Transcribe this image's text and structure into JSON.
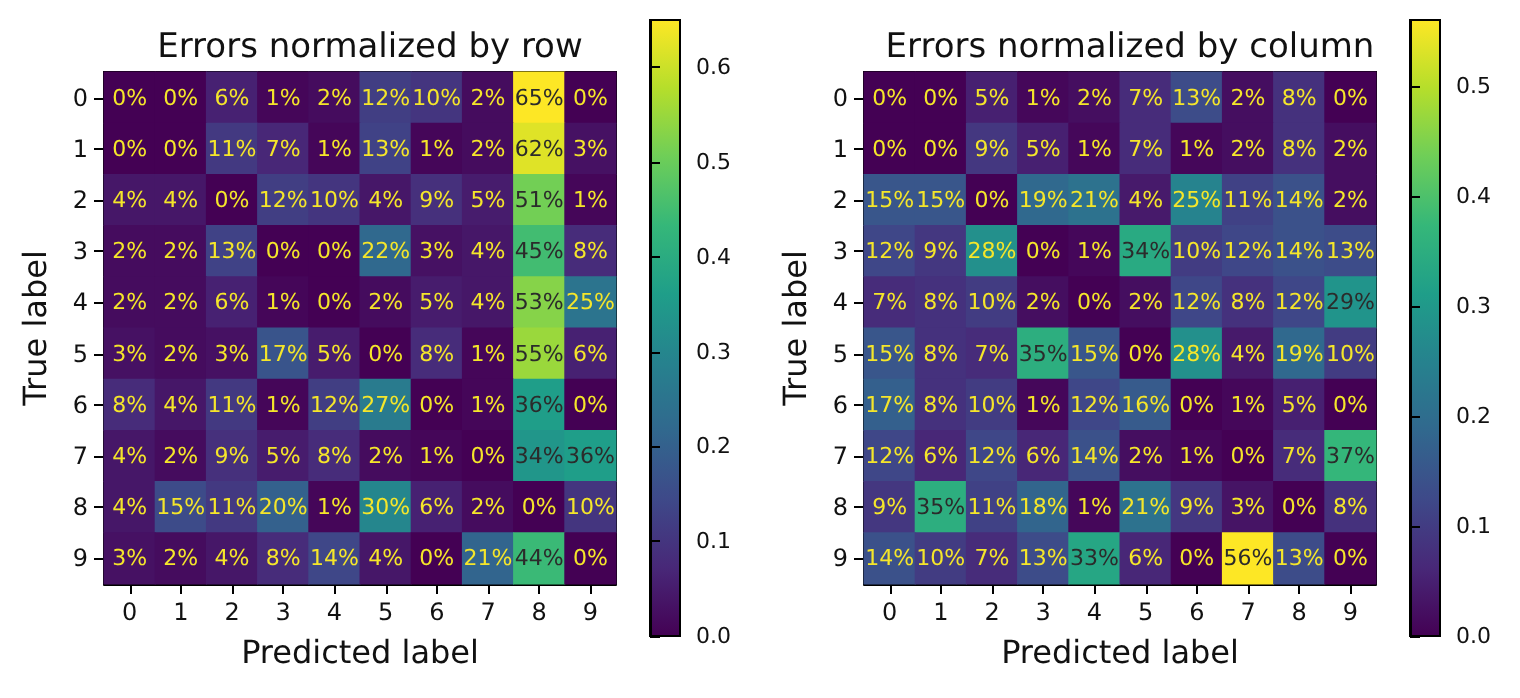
{
  "chart_data": [
    {
      "type": "heatmap",
      "title": "Errors normalized by row",
      "xlabel": "Predicted label",
      "ylabel": "True label",
      "categories": [
        "0",
        "1",
        "2",
        "3",
        "4",
        "5",
        "6",
        "7",
        "8",
        "9"
      ],
      "y_categories": [
        "0",
        "1",
        "2",
        "3",
        "4",
        "5",
        "6",
        "7",
        "8",
        "9"
      ],
      "cells": [
        [
          0,
          0,
          0.06,
          0.01,
          0.02,
          0.12,
          0.1,
          0.02,
          0.65,
          0
        ],
        [
          0,
          0,
          0.11,
          0.07,
          0.01,
          0.13,
          0.01,
          0.02,
          0.62,
          0.03
        ],
        [
          0.04,
          0.04,
          0,
          0.12,
          0.1,
          0.04,
          0.09,
          0.05,
          0.51,
          0.01
        ],
        [
          0.02,
          0.02,
          0.13,
          0,
          0,
          0.22,
          0.03,
          0.04,
          0.45,
          0.08
        ],
        [
          0.02,
          0.02,
          0.06,
          0.01,
          0,
          0.02,
          0.05,
          0.04,
          0.53,
          0.25
        ],
        [
          0.03,
          0.02,
          0.03,
          0.17,
          0.05,
          0,
          0.08,
          0.01,
          0.55,
          0.06
        ],
        [
          0.08,
          0.04,
          0.11,
          0.01,
          0.12,
          0.27,
          0,
          0.01,
          0.36,
          0
        ],
        [
          0.04,
          0.02,
          0.09,
          0.05,
          0.08,
          0.02,
          0.01,
          0,
          0.34,
          0.36
        ],
        [
          0.04,
          0.15,
          0.11,
          0.2,
          0.01,
          0.3,
          0.06,
          0.02,
          0,
          0.1
        ],
        [
          0.03,
          0.02,
          0.04,
          0.08,
          0.14,
          0.04,
          0,
          0.21,
          0.44,
          0
        ]
      ],
      "cell_labels": [
        [
          "0%",
          "0%",
          "6%",
          "1%",
          "2%",
          "12%",
          "10%",
          "2%",
          "65%",
          "0%"
        ],
        [
          "0%",
          "0%",
          "11%",
          "7%",
          "1%",
          "13%",
          "1%",
          "2%",
          "62%",
          "3%"
        ],
        [
          "4%",
          "4%",
          "0%",
          "12%",
          "10%",
          "4%",
          "9%",
          "5%",
          "51%",
          "1%"
        ],
        [
          "2%",
          "2%",
          "13%",
          "0%",
          "0%",
          "22%",
          "3%",
          "4%",
          "45%",
          "8%"
        ],
        [
          "2%",
          "2%",
          "6%",
          "1%",
          "0%",
          "2%",
          "5%",
          "4%",
          "53%",
          "25%"
        ],
        [
          "3%",
          "2%",
          "3%",
          "17%",
          "5%",
          "0%",
          "8%",
          "1%",
          "55%",
          "6%"
        ],
        [
          "8%",
          "4%",
          "11%",
          "1%",
          "12%",
          "27%",
          "0%",
          "1%",
          "36%",
          "0%"
        ],
        [
          "4%",
          "2%",
          "9%",
          "5%",
          "8%",
          "2%",
          "1%",
          "0%",
          "34%",
          "36%"
        ],
        [
          "4%",
          "15%",
          "11%",
          "20%",
          "1%",
          "30%",
          "6%",
          "2%",
          "0%",
          "10%"
        ],
        [
          "3%",
          "2%",
          "4%",
          "8%",
          "14%",
          "4%",
          "0%",
          "21%",
          "44%",
          "0%"
        ]
      ],
      "clim": [
        0,
        0.65
      ],
      "cticks": [
        {
          "value": 0,
          "label": "0.0"
        },
        0.1,
        0.2,
        0.3,
        0.4,
        0.5,
        0.6
      ]
    },
    {
      "type": "heatmap",
      "title": "Errors normalized by column",
      "xlabel": "Predicted label",
      "ylabel": "True label",
      "categories": [
        "0",
        "1",
        "2",
        "3",
        "4",
        "5",
        "6",
        "7",
        "8",
        "9"
      ],
      "y_categories": [
        "0",
        "1",
        "2",
        "3",
        "4",
        "5",
        "6",
        "7",
        "8",
        "9"
      ],
      "cells": [
        [
          0,
          0,
          0.05,
          0.01,
          0.02,
          0.07,
          0.13,
          0.02,
          0.08,
          0
        ],
        [
          0,
          0,
          0.09,
          0.05,
          0.01,
          0.07,
          0.01,
          0.02,
          0.08,
          0.02
        ],
        [
          0.15,
          0.15,
          0,
          0.19,
          0.21,
          0.04,
          0.25,
          0.11,
          0.14,
          0.02
        ],
        [
          0.12,
          0.09,
          0.28,
          0,
          0.01,
          0.34,
          0.1,
          0.12,
          0.14,
          0.13
        ],
        [
          0.07,
          0.08,
          0.1,
          0.02,
          0,
          0.02,
          0.12,
          0.08,
          0.12,
          0.29
        ],
        [
          0.15,
          0.08,
          0.07,
          0.35,
          0.15,
          0,
          0.28,
          0.04,
          0.19,
          0.1
        ],
        [
          0.17,
          0.08,
          0.1,
          0.01,
          0.12,
          0.16,
          0,
          0.01,
          0.05,
          0
        ],
        [
          0.12,
          0.06,
          0.12,
          0.06,
          0.14,
          0.02,
          0.01,
          0,
          0.07,
          0.37
        ],
        [
          0.09,
          0.35,
          0.11,
          0.18,
          0.01,
          0.21,
          0.09,
          0.03,
          0,
          0.08
        ],
        [
          0.14,
          0.1,
          0.07,
          0.13,
          0.33,
          0.06,
          0,
          0.56,
          0.13,
          0
        ]
      ],
      "cell_labels": [
        [
          "0%",
          "0%",
          "5%",
          "1%",
          "2%",
          "7%",
          "13%",
          "2%",
          "8%",
          "0%"
        ],
        [
          "0%",
          "0%",
          "9%",
          "5%",
          "1%",
          "7%",
          "1%",
          "2%",
          "8%",
          "2%"
        ],
        [
          "15%",
          "15%",
          "0%",
          "19%",
          "21%",
          "4%",
          "25%",
          "11%",
          "14%",
          "2%"
        ],
        [
          "12%",
          "9%",
          "28%",
          "0%",
          "1%",
          "34%",
          "10%",
          "12%",
          "14%",
          "13%"
        ],
        [
          "7%",
          "8%",
          "10%",
          "2%",
          "0%",
          "2%",
          "12%",
          "8%",
          "12%",
          "29%"
        ],
        [
          "15%",
          "8%",
          "7%",
          "35%",
          "15%",
          "0%",
          "28%",
          "4%",
          "19%",
          "10%"
        ],
        [
          "17%",
          "8%",
          "10%",
          "1%",
          "12%",
          "16%",
          "0%",
          "1%",
          "5%",
          "0%"
        ],
        [
          "12%",
          "6%",
          "12%",
          "6%",
          "14%",
          "2%",
          "1%",
          "0%",
          "7%",
          "37%"
        ],
        [
          "9%",
          "35%",
          "11%",
          "18%",
          "1%",
          "21%",
          "9%",
          "3%",
          "0%",
          "8%"
        ],
        [
          "14%",
          "10%",
          "7%",
          "13%",
          "33%",
          "6%",
          "0%",
          "56%",
          "13%",
          "0%"
        ]
      ],
      "clim": [
        0,
        0.56
      ],
      "cticks": [
        {
          "value": 0,
          "label": "0.0"
        },
        0.1,
        0.2,
        0.3,
        0.4,
        0.5
      ]
    }
  ]
}
